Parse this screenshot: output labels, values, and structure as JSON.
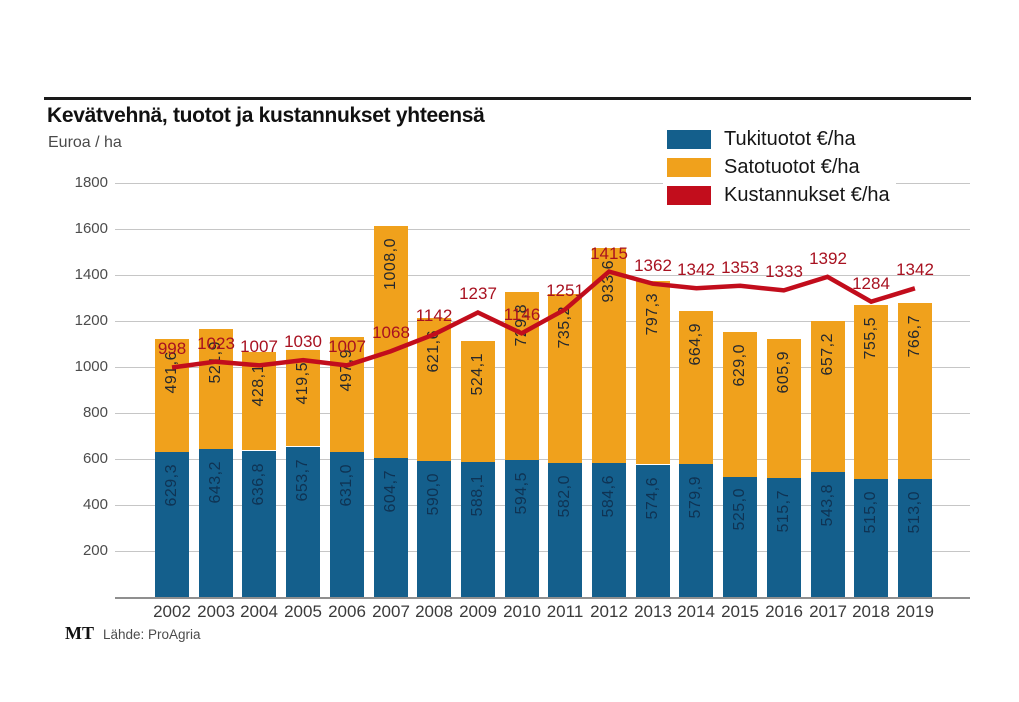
{
  "page": {
    "title": "Kevätvehnä, tuotot ja kustannukset yhteensä",
    "subtitle": "Euroa / ha"
  },
  "legend": [
    {
      "label": "Tukituotot €/ha",
      "color": "#145f8c",
      "icon": "blue-swatch"
    },
    {
      "label": "Satotuotot €/ha",
      "color": "#f0a11c",
      "icon": "orange-swatch"
    },
    {
      "label": "Kustannukset €/ha",
      "color": "#c20d1c",
      "icon": "red-swatch"
    }
  ],
  "footer": {
    "brand": "MT",
    "source": "Lähde: ProAgria"
  },
  "chart_data": {
    "type": "bar",
    "subtype": "stacked-bars-with-line-overlay",
    "title": "Kevätvehnä, tuotot ja kustannukset yhteensä",
    "ylabel": "Euroa / ha",
    "xlabel": "",
    "categories": [
      "2002",
      "2003",
      "2004",
      "2005",
      "2006",
      "2007",
      "2008",
      "2009",
      "2010",
      "2011",
      "2012",
      "2013",
      "2014",
      "2015",
      "2016",
      "2017",
      "2018",
      "2019"
    ],
    "ylim": [
      0,
      1800
    ],
    "yticks": [
      200,
      400,
      600,
      800,
      1000,
      1200,
      1400,
      1600,
      1800
    ],
    "grid": true,
    "legend_position": "top-right",
    "series": [
      {
        "name": "Tukituotot €/ha",
        "type": "bar",
        "stack": "total",
        "color": "#145f8c",
        "label_color": "#0f3353",
        "values": [
          629.3,
          643.2,
          636.8,
          653.7,
          631.0,
          604.7,
          590.0,
          588.1,
          594.5,
          582.0,
          584.6,
          574.6,
          579.9,
          525.0,
          515.7,
          543.8,
          515.0,
          513.0
        ],
        "labels": [
          "629,3",
          "643,2",
          "636,8",
          "653,7",
          "631,0",
          "604,7",
          "590,0",
          "588,1",
          "594,5",
          "582,0",
          "584,6",
          "574,6",
          "579,9",
          "525,0",
          "515,7",
          "543,8",
          "515,0",
          "513,0"
        ]
      },
      {
        "name": "Satotuotot €/ha",
        "type": "bar",
        "stack": "total",
        "color": "#f0a11c",
        "label_color": "#26292e",
        "values": [
          491.6,
          521.9,
          428.1,
          419.5,
          497.9,
          1008.0,
          621.6,
          524.1,
          729.8,
          735.2,
          933.6,
          797.3,
          664.9,
          629.0,
          605.9,
          657.2,
          755.5,
          766.7
        ],
        "labels": [
          "491,6",
          "521,9",
          "428,1",
          "419,5",
          "497,9",
          "1008,0",
          "621,6",
          "524,1",
          "729,8",
          "735,2",
          "933,6",
          "797,3",
          "664,9",
          "629,0",
          "605,9",
          "657,2",
          "755,5",
          "766,7"
        ]
      },
      {
        "name": "Kustannukset €/ha",
        "type": "line",
        "color": "#c20d1c",
        "label_color": "#a81120",
        "values": [
          998,
          1023,
          1007,
          1030,
          1007,
          1068,
          1142,
          1237,
          1146,
          1251,
          1415,
          1362,
          1342,
          1353,
          1333,
          1392,
          1284,
          1342
        ],
        "labels": [
          "998",
          "1023",
          "1007",
          "1030",
          "1007",
          "1068",
          "1142",
          "1237",
          "1146",
          "1251",
          "1415",
          "1362",
          "1342",
          "1353",
          "1333",
          "1392",
          "1284",
          "1342"
        ]
      }
    ]
  }
}
